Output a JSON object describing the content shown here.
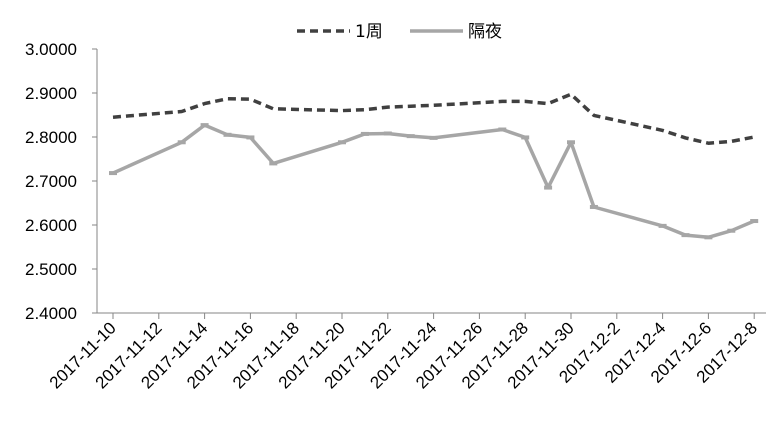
{
  "chart_data": {
    "type": "line",
    "title": "",
    "xlabel": "",
    "ylabel": "",
    "ylim": [
      2.4,
      3.0
    ],
    "yticks": [
      "2.4000",
      "2.5000",
      "2.6000",
      "2.7000",
      "2.8000",
      "2.9000",
      "3.0000"
    ],
    "xticks": [
      "2017-11-10",
      "2017-11-12",
      "2017-11-14",
      "2017-11-16",
      "2017-11-18",
      "2017-11-20",
      "2017-11-22",
      "2017-11-24",
      "2017-11-26",
      "2017-11-28",
      "2017-11-30",
      "2017-12-2",
      "2017-12-4",
      "2017-12-6",
      "2017-12-8"
    ],
    "legend_position": "top",
    "grid": false,
    "series": [
      {
        "name": "1周",
        "style": "dashed",
        "color": "#404040",
        "points": [
          {
            "x": "2017-11-10",
            "y": 2.845
          },
          {
            "x": "2017-11-13",
            "y": 2.858
          },
          {
            "x": "2017-11-14",
            "y": 2.876
          },
          {
            "x": "2017-11-15",
            "y": 2.887
          },
          {
            "x": "2017-11-16",
            "y": 2.886
          },
          {
            "x": "2017-11-17",
            "y": 2.864
          },
          {
            "x": "2017-11-20",
            "y": 2.86
          },
          {
            "x": "2017-11-21",
            "y": 2.862
          },
          {
            "x": "2017-11-22",
            "y": 2.868
          },
          {
            "x": "2017-11-23",
            "y": 2.87
          },
          {
            "x": "2017-11-24",
            "y": 2.872
          },
          {
            "x": "2017-11-27",
            "y": 2.881
          },
          {
            "x": "2017-11-28",
            "y": 2.881
          },
          {
            "x": "2017-11-29",
            "y": 2.876
          },
          {
            "x": "2017-11-30",
            "y": 2.897
          },
          {
            "x": "2017-12-1",
            "y": 2.849
          },
          {
            "x": "2017-12-4",
            "y": 2.815
          },
          {
            "x": "2017-12-5",
            "y": 2.798
          },
          {
            "x": "2017-12-6",
            "y": 2.786
          },
          {
            "x": "2017-12-7",
            "y": 2.79
          },
          {
            "x": "2017-12-8",
            "y": 2.8
          }
        ]
      },
      {
        "name": "隔夜",
        "style": "solid",
        "color": "#a6a6a6",
        "points": [
          {
            "x": "2017-11-10",
            "y": 2.718
          },
          {
            "x": "2017-11-13",
            "y": 2.788
          },
          {
            "x": "2017-11-14",
            "y": 2.827
          },
          {
            "x": "2017-11-15",
            "y": 2.805
          },
          {
            "x": "2017-11-16",
            "y": 2.799
          },
          {
            "x": "2017-11-17",
            "y": 2.74
          },
          {
            "x": "2017-11-20",
            "y": 2.788
          },
          {
            "x": "2017-11-21",
            "y": 2.807
          },
          {
            "x": "2017-11-22",
            "y": 2.808
          },
          {
            "x": "2017-11-23",
            "y": 2.802
          },
          {
            "x": "2017-11-24",
            "y": 2.798
          },
          {
            "x": "2017-11-27",
            "y": 2.817
          },
          {
            "x": "2017-11-28",
            "y": 2.799
          },
          {
            "x": "2017-11-29",
            "y": 2.685
          },
          {
            "x": "2017-11-30",
            "y": 2.788
          },
          {
            "x": "2017-12-1",
            "y": 2.641
          },
          {
            "x": "2017-12-4",
            "y": 2.598
          },
          {
            "x": "2017-12-5",
            "y": 2.577
          },
          {
            "x": "2017-12-6",
            "y": 2.572
          },
          {
            "x": "2017-12-7",
            "y": 2.587
          },
          {
            "x": "2017-12-8",
            "y": 2.609
          }
        ]
      }
    ]
  }
}
